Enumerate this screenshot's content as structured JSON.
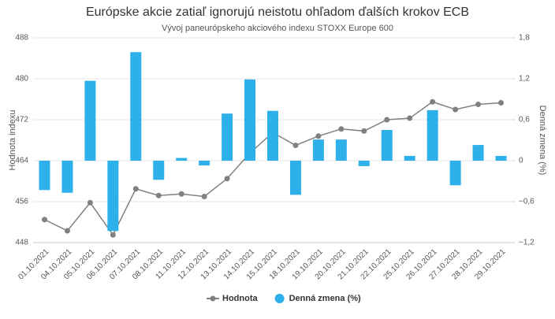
{
  "chart_data": {
    "type": "bar-line",
    "title": "Európske akcie zatiaľ ignorujú neistotu ohľadom ďalších krokov ECB",
    "subtitle": "Vývoj paneurópskeho akciového indexu STOXX Europe 600",
    "y_label": "Hodnota indexu",
    "y2_label": "Denná zmena (%)",
    "categories": [
      "01.10.2021",
      "04.10.2021",
      "05.10.2021",
      "06.10.2021",
      "07.10.2021",
      "08.10.2021",
      "11.10.2021",
      "12.10.2021",
      "13.10.2021",
      "14.10.2021",
      "15.10.2021",
      "18.10.2021",
      "19.10.2021",
      "20.10.2021",
      "21.10.2021",
      "22.10.2021",
      "25.10.2021",
      "26.10.2021",
      "27.10.2021",
      "28.10.2021",
      "29.10.2021"
    ],
    "series": [
      {
        "name": "Hodnota",
        "type": "line",
        "color": "#808080",
        "values": [
          452.5,
          450.3,
          455.8,
          449.5,
          458.5,
          457.2,
          457.5,
          457.0,
          460.5,
          465.5,
          469.5,
          467.0,
          468.8,
          470.2,
          469.8,
          472.0,
          472.3,
          475.5,
          474.0,
          475.0,
          475.3
        ]
      },
      {
        "name": "Denná zmena (%)",
        "type": "bar",
        "axis": "y2",
        "color": "#2eb0ea",
        "values": [
          -0.43,
          -0.47,
          1.17,
          -1.03,
          1.59,
          -0.28,
          0.04,
          -0.07,
          0.69,
          1.19,
          0.73,
          -0.5,
          0.31,
          0.31,
          -0.08,
          0.45,
          0.07,
          0.74,
          -0.36,
          0.23,
          0.07
        ]
      }
    ],
    "ylim": [
      448,
      488
    ],
    "yticks": [
      448,
      456,
      464,
      472,
      480,
      488
    ],
    "y2lim": [
      -1.2,
      1.8
    ],
    "y2ticks": [
      {
        "value": -1.2,
        "label": "−1,2"
      },
      {
        "value": -0.6,
        "label": "−0,6"
      },
      0,
      {
        "value": 0.6,
        "label": "0,6"
      },
      {
        "value": 1.2,
        "label": "1,2"
      },
      {
        "value": 1.8,
        "label": "1,8"
      }
    ],
    "grid": true,
    "legend": "bottom"
  }
}
